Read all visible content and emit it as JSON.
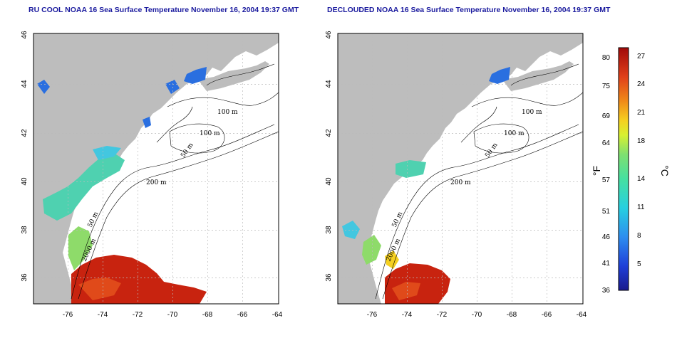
{
  "maps": [
    {
      "id": "left",
      "title": "RU COOL NOAA 16 Sea Surface Temperature November 16, 2004 19:37 GMT",
      "x_ticks": [
        "-76",
        "-74",
        "-72",
        "-70",
        "-68",
        "-66",
        "-64"
      ],
      "y_ticks": [
        "36",
        "38",
        "40",
        "42",
        "44",
        "46"
      ],
      "contour_labels": [
        "100 m",
        "100 m",
        "50 m",
        "200 m",
        "50 m",
        "2000 m"
      ]
    },
    {
      "id": "right",
      "title": "DECLOUDED NOAA 16 Sea Surface Temperature November 16, 2004 19:37 GMT",
      "x_ticks": [
        "-76",
        "-74",
        "-72",
        "-70",
        "-68",
        "-66",
        "-64"
      ],
      "y_ticks": [
        "36",
        "38",
        "40",
        "42",
        "44",
        "46"
      ],
      "contour_labels": [
        "100 m",
        "100 m",
        "50 m",
        "200 m",
        "50 m",
        "2000 m"
      ]
    }
  ],
  "colorbar": {
    "fahrenheit_ticks": [
      "80",
      "75",
      "69",
      "64",
      "57",
      "51",
      "46",
      "41",
      "36"
    ],
    "celsius_ticks": [
      "27",
      "24",
      "21",
      "18",
      "14",
      "11",
      "8",
      "5"
    ],
    "fahrenheit_label": "°F",
    "celsius_label": "°C"
  },
  "colors": {
    "land": "#bdbdbd",
    "title": "#1a1a9e",
    "warm": "#c8230f",
    "cool": "#2a6fe0",
    "mid": "#4fd1b0"
  }
}
